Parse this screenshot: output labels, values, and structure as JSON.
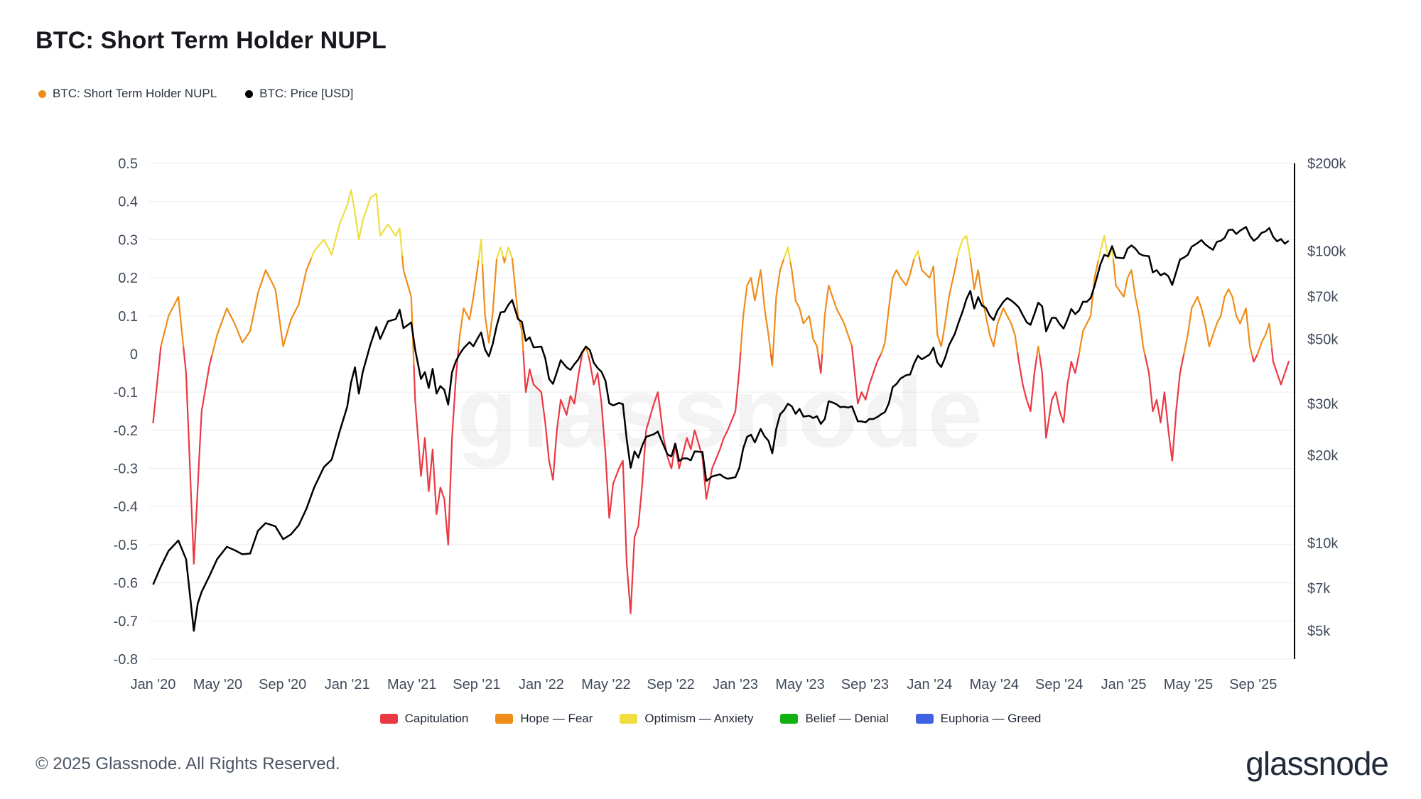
{
  "header": {
    "title": "BTC: Short Term Holder NUPL"
  },
  "legend_top": {
    "items": [
      {
        "label": "BTC: Short Term Holder NUPL",
        "color": "#f08c18"
      },
      {
        "label": "BTC: Price [USD]",
        "color": "#000000"
      }
    ]
  },
  "footer": {
    "copyright": "© 2025 Glassnode. All Rights Reserved.",
    "logo_text": "glassnode"
  },
  "chart_data": {
    "type": "line",
    "title": "BTC: Short Term Holder NUPL",
    "watermark": "glassnode",
    "grid_color": "#ececec",
    "price_color": "#000000",
    "x_domain": [
      2019.98,
      2025.88
    ],
    "y_left_domain": [
      -0.8,
      0.5
    ],
    "y_right_domain": [
      4000,
      200000
    ],
    "y_right_scale": "log",
    "x_ticks": [
      {
        "t": 2020.0,
        "label": "Jan '20"
      },
      {
        "t": 2020.333,
        "label": "May '20"
      },
      {
        "t": 2020.667,
        "label": "Sep '20"
      },
      {
        "t": 2021.0,
        "label": "Jan '21"
      },
      {
        "t": 2021.333,
        "label": "May '21"
      },
      {
        "t": 2021.667,
        "label": "Sep '21"
      },
      {
        "t": 2022.0,
        "label": "Jan '22"
      },
      {
        "t": 2022.333,
        "label": "May '22"
      },
      {
        "t": 2022.667,
        "label": "Sep '22"
      },
      {
        "t": 2023.0,
        "label": "Jan '23"
      },
      {
        "t": 2023.333,
        "label": "May '23"
      },
      {
        "t": 2023.667,
        "label": "Sep '23"
      },
      {
        "t": 2024.0,
        "label": "Jan '24"
      },
      {
        "t": 2024.333,
        "label": "May '24"
      },
      {
        "t": 2024.667,
        "label": "Sep '24"
      },
      {
        "t": 2025.0,
        "label": "Jan '25"
      },
      {
        "t": 2025.333,
        "label": "May '25"
      },
      {
        "t": 2025.667,
        "label": "Sep '25"
      }
    ],
    "y_left_ticks": [
      {
        "v": 0.5,
        "label": "0.5"
      },
      {
        "v": 0.4,
        "label": "0.4"
      },
      {
        "v": 0.3,
        "label": "0.3"
      },
      {
        "v": 0.2,
        "label": "0.2"
      },
      {
        "v": 0.1,
        "label": "0.1"
      },
      {
        "v": 0.0,
        "label": "0"
      },
      {
        "v": -0.1,
        "label": "-0.1"
      },
      {
        "v": -0.2,
        "label": "-0.2"
      },
      {
        "v": -0.3,
        "label": "-0.3"
      },
      {
        "v": -0.4,
        "label": "-0.4"
      },
      {
        "v": -0.5,
        "label": "-0.5"
      },
      {
        "v": -0.6,
        "label": "-0.6"
      },
      {
        "v": -0.7,
        "label": "-0.7"
      },
      {
        "v": -0.8,
        "label": "-0.8"
      }
    ],
    "y_right_ticks": [
      {
        "v": 200000,
        "label": "$200k"
      },
      {
        "v": 100000,
        "label": "$100k"
      },
      {
        "v": 70000,
        "label": "$70k"
      },
      {
        "v": 50000,
        "label": "$50k"
      },
      {
        "v": 30000,
        "label": "$30k"
      },
      {
        "v": 20000,
        "label": "$20k"
      },
      {
        "v": 10000,
        "label": "$10k"
      },
      {
        "v": 7000,
        "label": "$7k"
      },
      {
        "v": 5000,
        "label": "$5k"
      }
    ],
    "bands": [
      {
        "max": 0.0,
        "label": "Capitulation",
        "color": "#ea3943"
      },
      {
        "max": 0.25,
        "label": "Hope — Fear",
        "color": "#f08c18"
      },
      {
        "max": 0.5,
        "label": "Optimism — Anxiety",
        "color": "#f0dd41"
      },
      {
        "max": 0.75,
        "label": "Belief — Denial",
        "color": "#12b112"
      },
      {
        "max": 99,
        "label": "Euphoria — Greed",
        "color": "#3f63e0"
      }
    ],
    "series_names": [
      "BTC: Short Term Holder NUPL",
      "BTC: Price [USD]"
    ],
    "points_format": [
      "year_decimal",
      "nupl",
      "price_usd"
    ],
    "points": [
      [
        2020.0,
        -0.18,
        7200
      ],
      [
        2020.04,
        0.02,
        8300
      ],
      [
        2020.08,
        0.1,
        9400
      ],
      [
        2020.13,
        0.15,
        10200
      ],
      [
        2020.17,
        -0.05,
        8800
      ],
      [
        2020.21,
        -0.55,
        5000
      ],
      [
        2020.23,
        -0.35,
        6200
      ],
      [
        2020.25,
        -0.15,
        6800
      ],
      [
        2020.29,
        -0.03,
        7700
      ],
      [
        2020.33,
        0.05,
        8800
      ],
      [
        2020.38,
        0.12,
        9700
      ],
      [
        2020.42,
        0.08,
        9450
      ],
      [
        2020.46,
        0.03,
        9150
      ],
      [
        2020.5,
        0.06,
        9200
      ],
      [
        2020.54,
        0.16,
        11000
      ],
      [
        2020.58,
        0.22,
        11700
      ],
      [
        2020.63,
        0.17,
        11400
      ],
      [
        2020.67,
        0.02,
        10300
      ],
      [
        2020.71,
        0.09,
        10700
      ],
      [
        2020.75,
        0.13,
        11500
      ],
      [
        2020.79,
        0.22,
        13100
      ],
      [
        2020.83,
        0.27,
        15500
      ],
      [
        2020.88,
        0.3,
        18200
      ],
      [
        2020.92,
        0.26,
        19300
      ],
      [
        2020.96,
        0.34,
        24000
      ],
      [
        2021.0,
        0.39,
        29300
      ],
      [
        2021.02,
        0.43,
        35500
      ],
      [
        2021.04,
        0.37,
        40000
      ],
      [
        2021.06,
        0.3,
        32500
      ],
      [
        2021.08,
        0.35,
        38500
      ],
      [
        2021.12,
        0.41,
        48000
      ],
      [
        2021.15,
        0.42,
        55000
      ],
      [
        2021.17,
        0.31,
        50000
      ],
      [
        2021.21,
        0.34,
        57500
      ],
      [
        2021.25,
        0.31,
        58500
      ],
      [
        2021.27,
        0.33,
        63000
      ],
      [
        2021.29,
        0.22,
        54500
      ],
      [
        2021.33,
        0.15,
        57000
      ],
      [
        2021.35,
        -0.12,
        46000
      ],
      [
        2021.38,
        -0.32,
        36500
      ],
      [
        2021.4,
        -0.22,
        38500
      ],
      [
        2021.42,
        -0.36,
        34000
      ],
      [
        2021.44,
        -0.25,
        39500
      ],
      [
        2021.46,
        -0.42,
        32500
      ],
      [
        2021.48,
        -0.35,
        34500
      ],
      [
        2021.5,
        -0.38,
        33500
      ],
      [
        2021.52,
        -0.5,
        29800
      ],
      [
        2021.54,
        -0.22,
        38500
      ],
      [
        2021.56,
        -0.06,
        42000
      ],
      [
        2021.58,
        0.05,
        44500
      ],
      [
        2021.6,
        0.12,
        46500
      ],
      [
        2021.63,
        0.09,
        48800
      ],
      [
        2021.65,
        0.15,
        47200
      ],
      [
        2021.67,
        0.22,
        50000
      ],
      [
        2021.69,
        0.3,
        52700
      ],
      [
        2021.71,
        0.1,
        46000
      ],
      [
        2021.73,
        0.03,
        43600
      ],
      [
        2021.75,
        0.11,
        48200
      ],
      [
        2021.77,
        0.25,
        55500
      ],
      [
        2021.79,
        0.28,
        61700
      ],
      [
        2021.81,
        0.24,
        62000
      ],
      [
        2021.83,
        0.28,
        65500
      ],
      [
        2021.85,
        0.25,
        68000
      ],
      [
        2021.88,
        0.1,
        58500
      ],
      [
        2021.9,
        0.06,
        57200
      ],
      [
        2021.92,
        -0.1,
        49300
      ],
      [
        2021.94,
        -0.04,
        50700
      ],
      [
        2021.96,
        -0.08,
        46800
      ],
      [
        2022.0,
        -0.1,
        47100
      ],
      [
        2022.02,
        -0.18,
        43000
      ],
      [
        2022.04,
        -0.28,
        36500
      ],
      [
        2022.06,
        -0.33,
        35100
      ],
      [
        2022.08,
        -0.2,
        38500
      ],
      [
        2022.1,
        -0.12,
        42300
      ],
      [
        2022.13,
        -0.16,
        40000
      ],
      [
        2022.15,
        -0.11,
        39200
      ],
      [
        2022.17,
        -0.13,
        41000
      ],
      [
        2022.19,
        -0.06,
        42500
      ],
      [
        2022.21,
        0.0,
        45100
      ],
      [
        2022.23,
        0.02,
        47100
      ],
      [
        2022.25,
        -0.02,
        45800
      ],
      [
        2022.27,
        -0.08,
        41500
      ],
      [
        2022.29,
        -0.05,
        39800
      ],
      [
        2022.31,
        -0.13,
        38600
      ],
      [
        2022.33,
        -0.26,
        36000
      ],
      [
        2022.35,
        -0.43,
        30100
      ],
      [
        2022.37,
        -0.34,
        29600
      ],
      [
        2022.4,
        -0.3,
        30200
      ],
      [
        2022.42,
        -0.28,
        29900
      ],
      [
        2022.44,
        -0.55,
        22600
      ],
      [
        2022.46,
        -0.68,
        18100
      ],
      [
        2022.48,
        -0.48,
        20600
      ],
      [
        2022.5,
        -0.45,
        19600
      ],
      [
        2022.52,
        -0.34,
        21600
      ],
      [
        2022.54,
        -0.2,
        23100
      ],
      [
        2022.58,
        -0.13,
        23600
      ],
      [
        2022.6,
        -0.1,
        24100
      ],
      [
        2022.63,
        -0.22,
        21600
      ],
      [
        2022.65,
        -0.27,
        20100
      ],
      [
        2022.67,
        -0.3,
        19800
      ],
      [
        2022.69,
        -0.24,
        21900
      ],
      [
        2022.71,
        -0.3,
        19100
      ],
      [
        2022.73,
        -0.26,
        19500
      ],
      [
        2022.75,
        -0.22,
        19500
      ],
      [
        2022.77,
        -0.25,
        19200
      ],
      [
        2022.79,
        -0.2,
        20600
      ],
      [
        2022.83,
        -0.27,
        20500
      ],
      [
        2022.85,
        -0.38,
        16300
      ],
      [
        2022.88,
        -0.3,
        16900
      ],
      [
        2022.92,
        -0.25,
        17200
      ],
      [
        2022.94,
        -0.22,
        16800
      ],
      [
        2022.96,
        -0.2,
        16600
      ],
      [
        2023.0,
        -0.15,
        16800
      ],
      [
        2023.02,
        -0.04,
        18100
      ],
      [
        2023.04,
        0.1,
        21100
      ],
      [
        2023.06,
        0.18,
        23100
      ],
      [
        2023.08,
        0.2,
        23500
      ],
      [
        2023.1,
        0.14,
        22100
      ],
      [
        2023.13,
        0.22,
        24600
      ],
      [
        2023.15,
        0.12,
        23200
      ],
      [
        2023.17,
        0.05,
        22400
      ],
      [
        2023.19,
        -0.03,
        20300
      ],
      [
        2023.21,
        0.15,
        24600
      ],
      [
        2023.23,
        0.22,
        27600
      ],
      [
        2023.25,
        0.25,
        28500
      ],
      [
        2023.27,
        0.28,
        30000
      ],
      [
        2023.29,
        0.22,
        29400
      ],
      [
        2023.31,
        0.14,
        27700
      ],
      [
        2023.33,
        0.12,
        28800
      ],
      [
        2023.35,
        0.08,
        27100
      ],
      [
        2023.38,
        0.1,
        27300
      ],
      [
        2023.4,
        0.04,
        26800
      ],
      [
        2023.42,
        0.02,
        27200
      ],
      [
        2023.44,
        -0.05,
        25600
      ],
      [
        2023.46,
        0.1,
        26600
      ],
      [
        2023.48,
        0.18,
        30600
      ],
      [
        2023.5,
        0.15,
        30300
      ],
      [
        2023.52,
        0.12,
        29900
      ],
      [
        2023.54,
        0.1,
        29200
      ],
      [
        2023.56,
        0.08,
        29300
      ],
      [
        2023.58,
        0.05,
        29100
      ],
      [
        2023.6,
        0.02,
        29400
      ],
      [
        2023.63,
        -0.13,
        26100
      ],
      [
        2023.65,
        -0.1,
        26100
      ],
      [
        2023.67,
        -0.12,
        25900
      ],
      [
        2023.69,
        -0.08,
        26600
      ],
      [
        2023.71,
        -0.05,
        26600
      ],
      [
        2023.73,
        -0.02,
        27000
      ],
      [
        2023.75,
        0.0,
        27600
      ],
      [
        2023.77,
        0.03,
        28100
      ],
      [
        2023.79,
        0.12,
        30100
      ],
      [
        2023.81,
        0.2,
        34200
      ],
      [
        2023.83,
        0.22,
        35100
      ],
      [
        2023.85,
        0.2,
        36600
      ],
      [
        2023.88,
        0.18,
        37600
      ],
      [
        2023.9,
        0.21,
        37800
      ],
      [
        2023.92,
        0.25,
        41200
      ],
      [
        2023.94,
        0.27,
        43800
      ],
      [
        2023.96,
        0.22,
        42600
      ],
      [
        2024.0,
        0.2,
        44200
      ],
      [
        2024.02,
        0.23,
        46700
      ],
      [
        2024.04,
        0.05,
        41600
      ],
      [
        2024.06,
        0.02,
        40100
      ],
      [
        2024.08,
        0.08,
        43100
      ],
      [
        2024.1,
        0.15,
        47600
      ],
      [
        2024.13,
        0.22,
        52100
      ],
      [
        2024.15,
        0.27,
        57100
      ],
      [
        2024.17,
        0.3,
        62100
      ],
      [
        2024.19,
        0.31,
        68600
      ],
      [
        2024.21,
        0.25,
        73100
      ],
      [
        2024.23,
        0.17,
        63600
      ],
      [
        2024.25,
        0.22,
        69600
      ],
      [
        2024.27,
        0.15,
        65100
      ],
      [
        2024.29,
        0.1,
        63900
      ],
      [
        2024.31,
        0.05,
        60100
      ],
      [
        2024.33,
        0.02,
        58100
      ],
      [
        2024.35,
        0.08,
        62600
      ],
      [
        2024.38,
        0.12,
        67100
      ],
      [
        2024.4,
        0.1,
        69100
      ],
      [
        2024.42,
        0.08,
        67800
      ],
      [
        2024.44,
        0.05,
        66100
      ],
      [
        2024.46,
        -0.02,
        64100
      ],
      [
        2024.48,
        -0.08,
        60400
      ],
      [
        2024.5,
        -0.12,
        57100
      ],
      [
        2024.52,
        -0.15,
        55900
      ],
      [
        2024.54,
        -0.05,
        60900
      ],
      [
        2024.56,
        0.02,
        66600
      ],
      [
        2024.58,
        -0.05,
        64700
      ],
      [
        2024.6,
        -0.22,
        53100
      ],
      [
        2024.63,
        -0.12,
        59100
      ],
      [
        2024.65,
        -0.1,
        59100
      ],
      [
        2024.67,
        -0.15,
        56300
      ],
      [
        2024.69,
        -0.18,
        54300
      ],
      [
        2024.71,
        -0.08,
        58200
      ],
      [
        2024.73,
        -0.02,
        63400
      ],
      [
        2024.75,
        -0.05,
        60900
      ],
      [
        2024.77,
        0.0,
        62600
      ],
      [
        2024.79,
        0.06,
        67100
      ],
      [
        2024.81,
        0.08,
        67100
      ],
      [
        2024.83,
        0.1,
        69100
      ],
      [
        2024.85,
        0.2,
        76100
      ],
      [
        2024.88,
        0.27,
        90100
      ],
      [
        2024.9,
        0.31,
        97100
      ],
      [
        2024.92,
        0.25,
        96100
      ],
      [
        2024.94,
        0.28,
        104100
      ],
      [
        2024.96,
        0.18,
        95100
      ],
      [
        2025.0,
        0.15,
        94600
      ],
      [
        2025.02,
        0.2,
        102100
      ],
      [
        2025.04,
        0.22,
        104600
      ],
      [
        2025.06,
        0.15,
        102100
      ],
      [
        2025.08,
        0.1,
        98100
      ],
      [
        2025.1,
        0.02,
        96600
      ],
      [
        2025.13,
        -0.05,
        96100
      ],
      [
        2025.15,
        -0.15,
        84600
      ],
      [
        2025.17,
        -0.12,
        86100
      ],
      [
        2025.19,
        -0.18,
        82600
      ],
      [
        2025.21,
        -0.1,
        84100
      ],
      [
        2025.23,
        -0.2,
        82100
      ],
      [
        2025.25,
        -0.28,
        76600
      ],
      [
        2025.27,
        -0.15,
        84600
      ],
      [
        2025.29,
        -0.05,
        93600
      ],
      [
        2025.31,
        0.0,
        95100
      ],
      [
        2025.33,
        0.05,
        97100
      ],
      [
        2025.35,
        0.12,
        103600
      ],
      [
        2025.38,
        0.15,
        106600
      ],
      [
        2025.4,
        0.12,
        109100
      ],
      [
        2025.42,
        0.08,
        105600
      ],
      [
        2025.44,
        0.02,
        103100
      ],
      [
        2025.46,
        0.05,
        101100
      ],
      [
        2025.48,
        0.08,
        107600
      ],
      [
        2025.5,
        0.1,
        108600
      ],
      [
        2025.52,
        0.15,
        111100
      ],
      [
        2025.54,
        0.17,
        118100
      ],
      [
        2025.56,
        0.15,
        118600
      ],
      [
        2025.58,
        0.1,
        114600
      ],
      [
        2025.6,
        0.08,
        117600
      ],
      [
        2025.63,
        0.12,
        121100
      ],
      [
        2025.65,
        0.02,
        113100
      ],
      [
        2025.67,
        -0.02,
        108600
      ],
      [
        2025.69,
        0.0,
        111100
      ],
      [
        2025.71,
        0.03,
        115600
      ],
      [
        2025.73,
        0.05,
        116800
      ],
      [
        2025.75,
        0.08,
        120100
      ],
      [
        2025.77,
        -0.02,
        112100
      ],
      [
        2025.79,
        -0.05,
        108100
      ],
      [
        2025.81,
        -0.08,
        110100
      ],
      [
        2025.83,
        -0.05,
        106100
      ],
      [
        2025.85,
        -0.02,
        108600
      ]
    ]
  }
}
